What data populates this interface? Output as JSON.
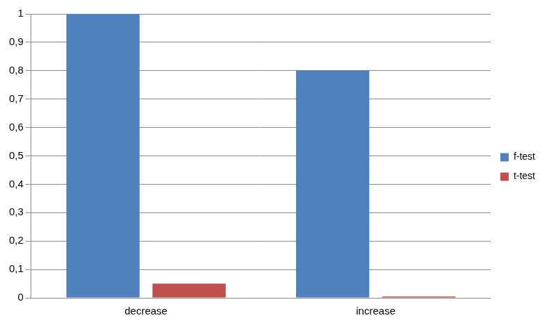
{
  "chart_data": {
    "type": "bar",
    "categories": [
      "decrease",
      "increase"
    ],
    "series": [
      {
        "name": "f-test",
        "color": "#4f81bd",
        "values": [
          1.0,
          0.8
        ]
      },
      {
        "name": "t-test",
        "color": "#c0504d",
        "values": [
          0.05,
          0.005
        ]
      }
    ],
    "ylim": [
      0,
      1
    ],
    "yticks": [
      0,
      {
        "value": 0.1,
        "label": "0,1"
      },
      {
        "value": 0.2,
        "label": "0,2"
      },
      {
        "value": 0.3,
        "label": "0,3"
      },
      {
        "value": 0.4,
        "label": "0,4"
      },
      {
        "value": 0.5,
        "label": "0,5"
      },
      {
        "value": 0.6,
        "label": "0,6"
      },
      {
        "value": 0.7,
        "label": "0,7"
      },
      {
        "value": 0.8,
        "label": "0,8"
      },
      {
        "value": 0.9,
        "label": "0,9"
      },
      1
    ],
    "grid": true,
    "legend": "right"
  }
}
